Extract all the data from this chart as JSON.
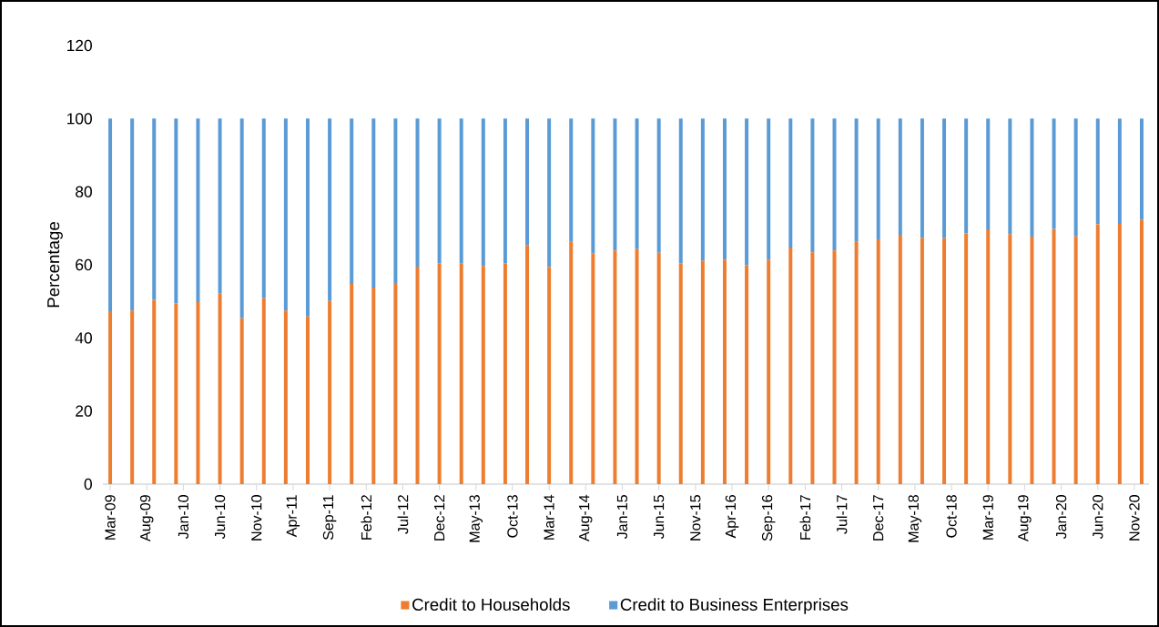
{
  "chart_data": {
    "type": "bar",
    "stacked": true,
    "ylabel": "Percentage",
    "legend": "bottom",
    "x": [
      "2009-03",
      "2009-06",
      "2009-09",
      "2009-12",
      "2010-03",
      "2010-06",
      "2010-09",
      "2010-12",
      "2011-03",
      "2011-06",
      "2011-09",
      "2011-12",
      "2012-03",
      "2012-06",
      "2012-09",
      "2012-12",
      "2013-03",
      "2013-06",
      "2013-09",
      "2013-12",
      "2014-03",
      "2014-06",
      "2014-09",
      "2014-12",
      "2015-03",
      "2015-06",
      "2015-09",
      "2015-12",
      "2016-03",
      "2016-06",
      "2016-09",
      "2016-12",
      "2017-03",
      "2017-06",
      "2017-09",
      "2017-12",
      "2018-03",
      "2018-06",
      "2018-09",
      "2018-12",
      "2019-03",
      "2019-06",
      "2019-09",
      "2019-12",
      "2020-03",
      "2020-06",
      "2020-09",
      "2020-12"
    ],
    "series": [
      {
        "name": "Credit to Households",
        "color": "#ed7d31",
        "values": [
          47.3,
          47.5,
          50.4,
          49.4,
          49.8,
          52.2,
          45.4,
          50.9,
          47.5,
          45.9,
          50.1,
          54.8,
          53.8,
          55.0,
          59.5,
          60.4,
          60.3,
          59.7,
          60.4,
          65.3,
          59.4,
          66.3,
          63.2,
          63.9,
          64.3,
          63.3,
          60.4,
          61.2,
          61.4,
          59.9,
          61.4,
          64.7,
          63.4,
          63.9,
          66.3,
          67.0,
          68.2,
          67.4,
          67.3,
          68.6,
          69.7,
          68.4,
          67.7,
          69.8,
          67.8,
          71.1,
          71.2,
          72.3
        ]
      },
      {
        "name": "Credit to Business Enterprises",
        "color": "#5b9bd5",
        "values": [
          52.7,
          52.5,
          49.6,
          50.6,
          50.2,
          47.8,
          54.6,
          49.1,
          52.5,
          54.1,
          49.9,
          45.2,
          46.2,
          45.0,
          40.5,
          39.6,
          39.7,
          40.3,
          39.6,
          34.7,
          40.6,
          33.7,
          36.8,
          36.1,
          35.7,
          36.7,
          39.6,
          38.8,
          38.6,
          40.1,
          38.6,
          35.3,
          36.6,
          36.1,
          33.7,
          33.0,
          31.8,
          32.6,
          32.7,
          31.4,
          30.3,
          31.6,
          32.3,
          30.2,
          32.2,
          28.9,
          28.8,
          27.7
        ]
      }
    ],
    "xlim": [
      "2009-02",
      "2021-01"
    ],
    "xticks": [
      {
        "value": "2009-03",
        "label": "Mar-09"
      },
      {
        "value": "2009-08",
        "label": "Aug-09"
      },
      {
        "value": "2010-01",
        "label": "Jan-10"
      },
      {
        "value": "2010-06",
        "label": "Jun-10"
      },
      {
        "value": "2010-11",
        "label": "Nov-10"
      },
      {
        "value": "2011-04",
        "label": "Apr-11"
      },
      {
        "value": "2011-09",
        "label": "Sep-11"
      },
      {
        "value": "2012-02",
        "label": "Feb-12"
      },
      {
        "value": "2012-07",
        "label": "Jul-12"
      },
      {
        "value": "2012-12",
        "label": "Dec-12"
      },
      {
        "value": "2013-05",
        "label": "May-13"
      },
      {
        "value": "2013-10",
        "label": "Oct-13"
      },
      {
        "value": "2014-03",
        "label": "Mar-14"
      },
      {
        "value": "2014-08",
        "label": "Aug-14"
      },
      {
        "value": "2015-01",
        "label": "Jan-15"
      },
      {
        "value": "2015-06",
        "label": "Jun-15"
      },
      {
        "value": "2015-11",
        "label": "Nov-15"
      },
      {
        "value": "2016-04",
        "label": "Apr-16"
      },
      {
        "value": "2016-09",
        "label": "Sep-16"
      },
      {
        "value": "2017-02",
        "label": "Feb-17"
      },
      {
        "value": "2017-07",
        "label": "Jul-17"
      },
      {
        "value": "2017-12",
        "label": "Dec-17"
      },
      {
        "value": "2018-05",
        "label": "May-18"
      },
      {
        "value": "2018-10",
        "label": "Oct-18"
      },
      {
        "value": "2019-03",
        "label": "Mar-19"
      },
      {
        "value": "2019-08",
        "label": "Aug-19"
      },
      {
        "value": "2020-01",
        "label": "Jan-20"
      },
      {
        "value": "2020-06",
        "label": "Jun-20"
      },
      {
        "value": "2020-11",
        "label": "Nov-20"
      }
    ],
    "ylim": [
      0,
      120
    ],
    "yticks": [
      0,
      20,
      40,
      60,
      80,
      100,
      120
    ]
  }
}
